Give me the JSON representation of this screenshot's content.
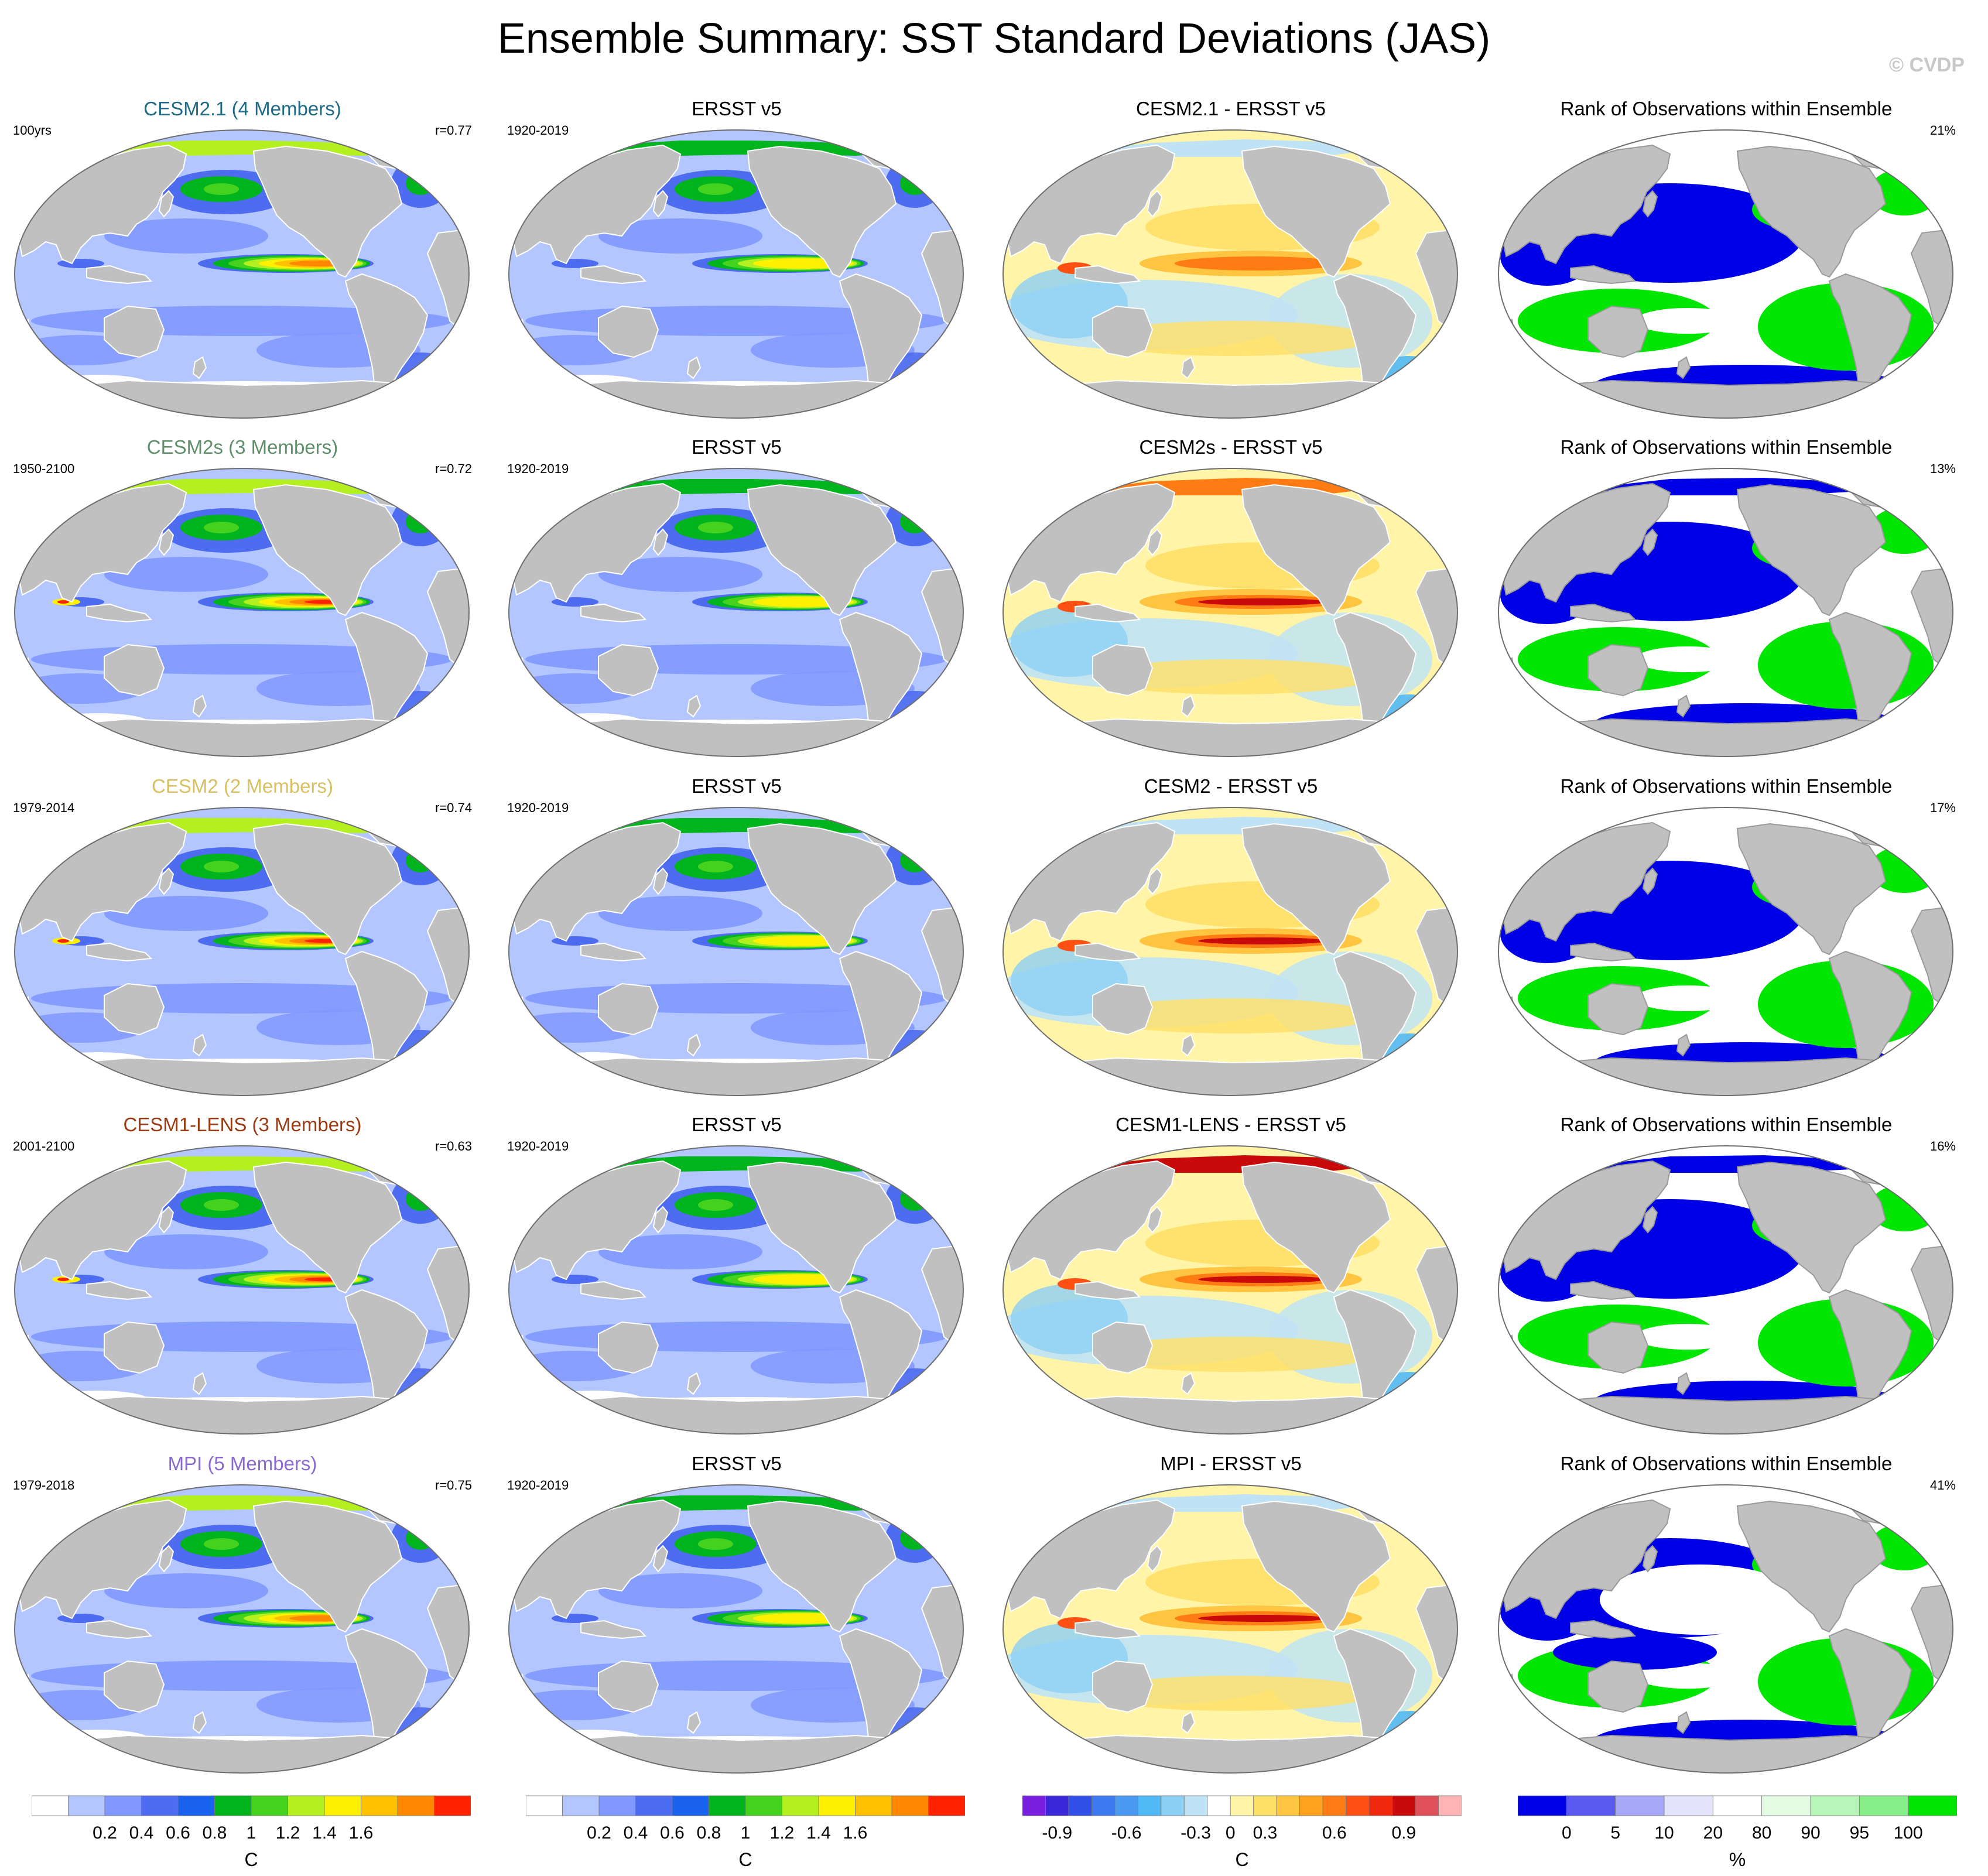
{
  "title": "Ensemble Summary: SST Standard Deviations (JAS)",
  "credit": "© CVDP",
  "rows": [
    {
      "ens": {
        "title": "CESM2.1 (4 Members)",
        "title_color": "#1f6a86",
        "left": "100yrs",
        "right": "r=0.77"
      },
      "obs": {
        "title": "ERSST v5",
        "left": "1920-2019"
      },
      "diff": {
        "title": "CESM2.1 - ERSST v5"
      },
      "rank": {
        "title": "Rank of Observations within Ensemble",
        "right": "21%"
      }
    },
    {
      "ens": {
        "title": "CESM2s (3 Members)",
        "title_color": "#5f8f6a",
        "left": "1950-2100",
        "right": "r=0.72"
      },
      "obs": {
        "title": "ERSST v5",
        "left": "1920-2019"
      },
      "diff": {
        "title": "CESM2s - ERSST v5"
      },
      "rank": {
        "title": "Rank of Observations within Ensemble",
        "right": "13%"
      }
    },
    {
      "ens": {
        "title": "CESM2 (2 Members)",
        "title_color": "#d8c062",
        "left": "1979-2014",
        "right": "r=0.74"
      },
      "obs": {
        "title": "ERSST v5",
        "left": "1920-2019"
      },
      "diff": {
        "title": "CESM2 - ERSST v5"
      },
      "rank": {
        "title": "Rank of Observations within Ensemble",
        "right": "17%"
      }
    },
    {
      "ens": {
        "title": "CESM1-LENS (3 Members)",
        "title_color": "#9a3a12",
        "left": "2001-2100",
        "right": "r=0.63"
      },
      "obs": {
        "title": "ERSST v5",
        "left": "1920-2019"
      },
      "diff": {
        "title": "CESM1-LENS - ERSST v5"
      },
      "rank": {
        "title": "Rank of Observations within Ensemble",
        "right": "16%"
      }
    },
    {
      "ens": {
        "title": "MPI (5 Members)",
        "title_color": "#8a6ad0",
        "left": "1979-2018",
        "right": "r=0.75"
      },
      "obs": {
        "title": "ERSST v5",
        "left": "1920-2019"
      },
      "diff": {
        "title": "MPI - ERSST v5"
      },
      "rank": {
        "title": "Rank of Observations within Ensemble",
        "right": "41%"
      }
    }
  ],
  "colorbars": {
    "sd": {
      "colors": [
        "#ffffff",
        "#b3c6ff",
        "#8098ff",
        "#4d6cf0",
        "#1a62f0",
        "#00b41e",
        "#45d21e",
        "#b4f020",
        "#fff000",
        "#ffc000",
        "#ff8800",
        "#ff2200"
      ],
      "ticks": [
        "0.2",
        "0.4",
        "0.6",
        "0.8",
        "1",
        "1.2",
        "1.4",
        "1.6"
      ],
      "unit": "C"
    },
    "diff": {
      "colors": [
        "#7a1ee0",
        "#3a28d8",
        "#3050e8",
        "#3c78f0",
        "#4a9af2",
        "#50b8f5",
        "#8ccff5",
        "#bfe3f5",
        "#ffffff",
        "#fff4a8",
        "#ffe066",
        "#ffc440",
        "#ffa21e",
        "#ff7c14",
        "#ff5014",
        "#f0280e",
        "#c80a0a",
        "#e0505a",
        "#ffb4b4"
      ],
      "ticks": [
        "-0.9",
        "-0.6",
        "-0.3",
        "0",
        "0.3",
        "0.6",
        "0.9"
      ],
      "unit": "C"
    },
    "rank": {
      "colors": [
        "#0000e6",
        "#5a5af0",
        "#a8a8f8",
        "#e4e4fc",
        "#ffffff",
        "#e2fbe2",
        "#b8f5b8",
        "#88ee88",
        "#00e600"
      ],
      "ticks": [
        "0",
        "5",
        "10",
        "20",
        "80",
        "90",
        "95",
        "100"
      ],
      "unit": "%"
    }
  },
  "colors": {
    "land": "#c0c0c0",
    "coast": "#ffffff"
  }
}
